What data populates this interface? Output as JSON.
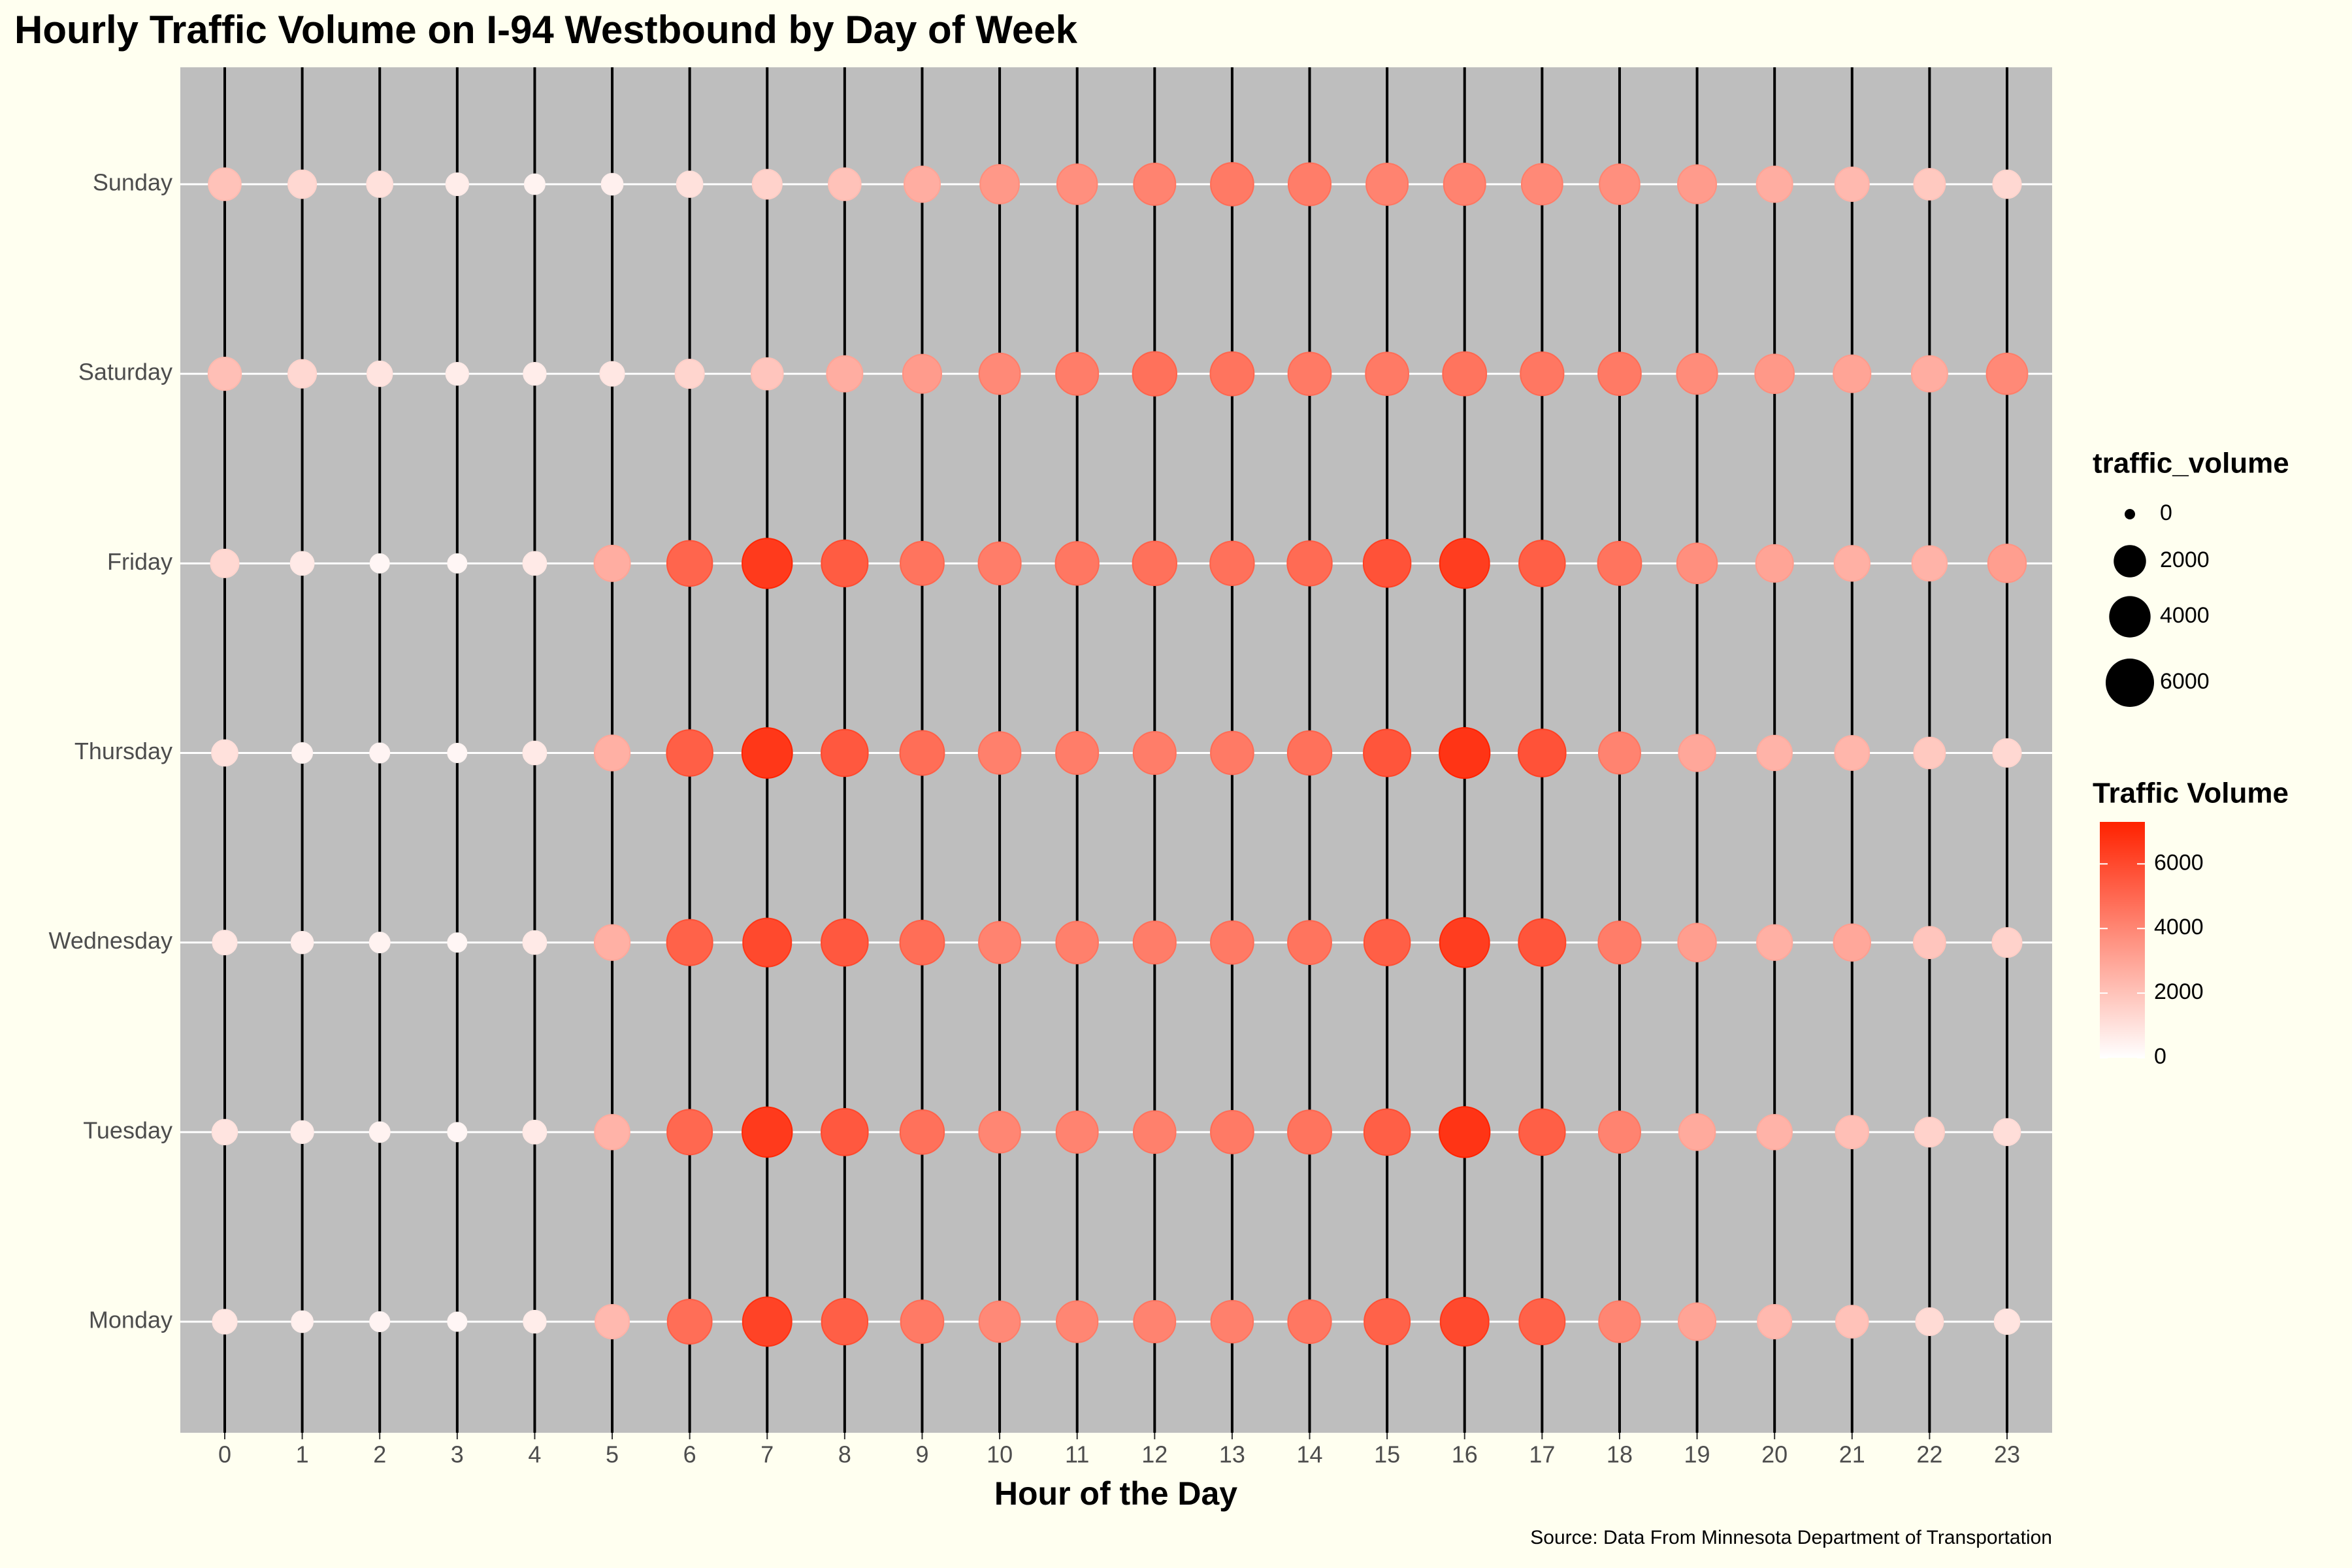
{
  "chart_data": {
    "type": "bubble",
    "title": "Hourly Traffic Volume on I-94 Westbound by Day of Week",
    "x_label": "Hour of the Day",
    "caption": "Source: Data From Minnesota Department of Transportation",
    "x": [
      0,
      1,
      2,
      3,
      4,
      5,
      6,
      7,
      8,
      9,
      10,
      11,
      12,
      13,
      14,
      15,
      16,
      17,
      18,
      19,
      20,
      21,
      22,
      23
    ],
    "series": [
      {
        "name": "Monday",
        "values": [
          800,
          500,
          350,
          300,
          600,
          2300,
          4800,
          6200,
          5300,
          4400,
          3900,
          4000,
          4100,
          4200,
          4500,
          5200,
          6000,
          5200,
          4000,
          3000,
          2300,
          2000,
          1200,
          900
        ]
      },
      {
        "name": "Tuesday",
        "values": [
          900,
          600,
          400,
          300,
          700,
          2500,
          5000,
          6500,
          5500,
          4700,
          4000,
          4100,
          4200,
          4400,
          4600,
          5300,
          6700,
          5300,
          4100,
          2800,
          2500,
          2100,
          1500,
          1100
        ]
      },
      {
        "name": "Wednesday",
        "values": [
          800,
          550,
          400,
          300,
          700,
          2600,
          5200,
          6000,
          5500,
          4800,
          4100,
          4200,
          4300,
          4400,
          4600,
          5300,
          6400,
          5600,
          4300,
          3200,
          2600,
          2900,
          1900,
          1500
        ]
      },
      {
        "name": "Thursday",
        "values": [
          1000,
          400,
          350,
          300,
          700,
          2600,
          5300,
          6600,
          5500,
          4800,
          4200,
          4300,
          4300,
          4400,
          4700,
          5600,
          6700,
          5700,
          4100,
          2900,
          2500,
          2400,
          1800,
          1300
        ]
      },
      {
        "name": "Friday",
        "values": [
          1300,
          700,
          300,
          300,
          700,
          2700,
          5100,
          6500,
          5400,
          4600,
          4300,
          4500,
          4700,
          4700,
          4900,
          5700,
          6400,
          5300,
          4600,
          3700,
          3000,
          2600,
          2500,
          3200
        ]
      },
      {
        "name": "Saturday",
        "values": [
          2100,
          1300,
          900,
          600,
          600,
          800,
          1400,
          1900,
          2700,
          3300,
          3900,
          4300,
          4700,
          4600,
          4400,
          4400,
          4600,
          4500,
          4400,
          3800,
          3400,
          3000,
          2700,
          3900
        ]
      },
      {
        "name": "Sunday",
        "values": [
          2000,
          1300,
          1000,
          600,
          400,
          500,
          1000,
          1500,
          2000,
          2700,
          3400,
          3700,
          4100,
          4400,
          4300,
          4100,
          4100,
          3900,
          3700,
          3300,
          2700,
          2300,
          1800,
          1300
        ]
      }
    ],
    "size_legend": {
      "title": "traffic_volume",
      "values": [
        0,
        2000,
        4000,
        6000
      ]
    },
    "color_legend": {
      "title": "Traffic Volume",
      "ticks": [
        0,
        2000,
        4000,
        6000
      ],
      "low": "#ffffff",
      "high": "#ff2200"
    },
    "colorlim": [
      0,
      7300
    ]
  }
}
